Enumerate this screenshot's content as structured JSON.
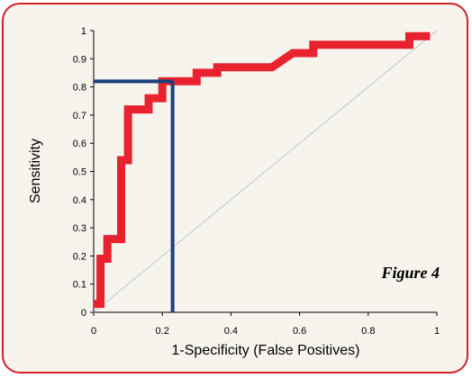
{
  "chart_data": {
    "type": "line",
    "figure_label": "Figure 4",
    "xlabel": "1-Specificity (False Positives)",
    "ylabel": "Sensitivity",
    "xlim": [
      0,
      1
    ],
    "ylim": [
      0,
      1
    ],
    "x_ticks": [
      "0",
      "0.2",
      "0.4",
      "0.6",
      "0.8",
      "1"
    ],
    "y_ticks": [
      "0",
      "0.1",
      "0.2",
      "0.3",
      "0.4",
      "0.5",
      "0.6",
      "0.7",
      "0.8",
      "0.9",
      "1"
    ],
    "grid": false,
    "series": [
      {
        "color": "#e8222f",
        "x": [
          0,
          0.02,
          0.02,
          0.04,
          0.04,
          0.08,
          0.08,
          0.1,
          0.1,
          0.12,
          0.12,
          0.16,
          0.16,
          0.2,
          0.2,
          0.24,
          0.24,
          0.3,
          0.3,
          0.36,
          0.36,
          0.52,
          0.58,
          0.64,
          0.64,
          0.92,
          0.92,
          0.98
        ],
        "y": [
          0.03,
          0.03,
          0.19,
          0.19,
          0.26,
          0.26,
          0.54,
          0.54,
          0.72,
          0.72,
          0.72,
          0.72,
          0.76,
          0.76,
          0.82,
          0.82,
          0.82,
          0.82,
          0.85,
          0.85,
          0.87,
          0.87,
          0.92,
          0.92,
          0.95,
          0.95,
          0.98,
          0.98
        ]
      },
      {
        "color": "#b7c9d4",
        "x": [
          0,
          1
        ],
        "y": [
          0,
          1
        ]
      }
    ],
    "reference_lines": {
      "color": "#1d3f7c",
      "x": 0.23,
      "y": 0.82
    }
  }
}
